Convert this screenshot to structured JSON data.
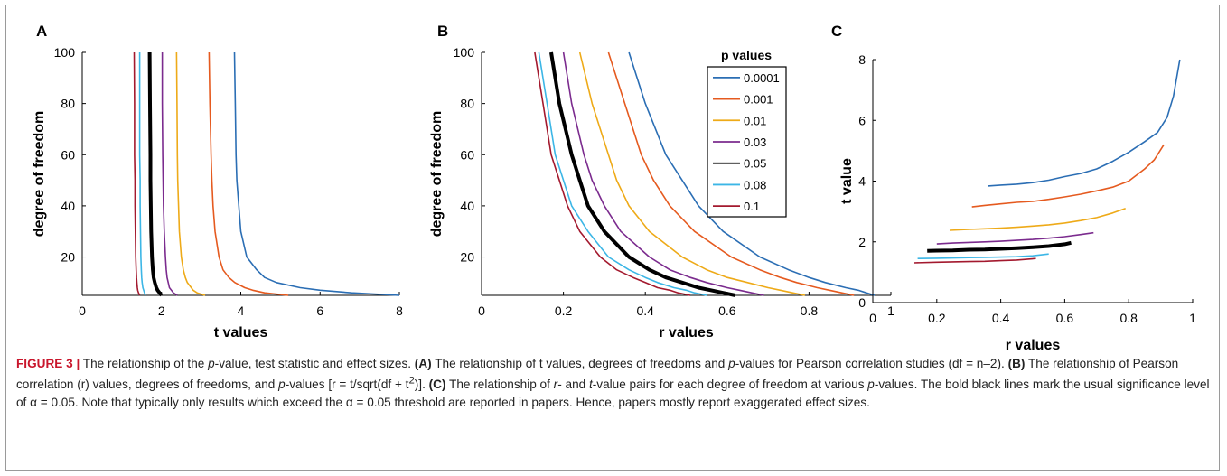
{
  "caption": {
    "figure_label": "FIGURE 3 |",
    "segments": [
      {
        "t": " The relationship of the ",
        "s": "n"
      },
      {
        "t": "p",
        "s": "i"
      },
      {
        "t": "-value, test statistic and effect sizes. ",
        "s": "n"
      },
      {
        "t": "(A)",
        "s": "b"
      },
      {
        "t": " The relationship of t values, degrees of freedoms and ",
        "s": "n"
      },
      {
        "t": "p",
        "s": "i"
      },
      {
        "t": "-values for Pearson correlation studies (df = n–2). ",
        "s": "n"
      },
      {
        "t": "(B)",
        "s": "b"
      },
      {
        "t": " The relationship of Pearson correlation (r) values, degrees of freedoms, and ",
        "s": "n"
      },
      {
        "t": "p",
        "s": "i"
      },
      {
        "t": "-values [r = t/sqrt(df + t",
        "s": "n"
      },
      {
        "t": "2",
        "s": "sup"
      },
      {
        "t": ")]. ",
        "s": "n"
      },
      {
        "t": "(C)",
        "s": "b"
      },
      {
        "t": " The relationship of ",
        "s": "n"
      },
      {
        "t": "r",
        "s": "i"
      },
      {
        "t": "- and ",
        "s": "n"
      },
      {
        "t": "t",
        "s": "i"
      },
      {
        "t": "-value pairs for each degree of freedom at various ",
        "s": "n"
      },
      {
        "t": "p",
        "s": "i"
      },
      {
        "t": "-values. The bold black lines mark the usual significance level of α = 0.05. Note that typically only results which exceed the α = 0.05 threshold are reported in papers. Hence, papers mostly report exaggerated effect sizes.",
        "s": "n"
      }
    ]
  },
  "chart_data": [
    {
      "panel": "A",
      "type": "line",
      "xlabel": "t values",
      "ylabel": "degree of freedom",
      "xlim": [
        0,
        8
      ],
      "ylim": [
        5,
        100
      ],
      "xticks": [
        "0",
        "2",
        "4",
        "6",
        "8"
      ],
      "yticks": [
        "20",
        "40",
        "60",
        "80",
        "100"
      ],
      "x_tick_values": [
        0,
        2,
        4,
        6,
        8
      ],
      "y_tick_values": [
        20,
        40,
        60,
        80,
        100
      ],
      "df": [
        5,
        6,
        7,
        8,
        10,
        12,
        15,
        20,
        30,
        40,
        50,
        60,
        80,
        100
      ],
      "series": [
        {
          "name": "0.0001",
          "color": "#2b6eb4",
          "values": [
            8.0,
            6.8,
            6.0,
            5.5,
            4.9,
            4.6,
            4.4,
            4.15,
            4.0,
            3.95,
            3.9,
            3.88,
            3.86,
            3.84
          ]
        },
        {
          "name": "0.001",
          "color": "#e55a1f",
          "values": [
            5.2,
            4.6,
            4.3,
            4.1,
            3.85,
            3.7,
            3.55,
            3.45,
            3.35,
            3.3,
            3.27,
            3.25,
            3.22,
            3.2
          ]
        },
        {
          "name": "0.01",
          "color": "#eeaa18",
          "values": [
            3.1,
            2.9,
            2.8,
            2.75,
            2.65,
            2.6,
            2.55,
            2.5,
            2.45,
            2.43,
            2.41,
            2.4,
            2.39,
            2.38
          ]
        },
        {
          "name": "0.03",
          "color": "#7b2b8e",
          "values": [
            2.4,
            2.3,
            2.25,
            2.2,
            2.17,
            2.14,
            2.12,
            2.1,
            2.07,
            2.05,
            2.04,
            2.03,
            2.02,
            2.02
          ]
        },
        {
          "name": "0.05",
          "color": "#000000",
          "bold": true,
          "values": [
            2.0,
            1.95,
            1.9,
            1.87,
            1.83,
            1.8,
            1.78,
            1.76,
            1.74,
            1.73,
            1.72,
            1.72,
            1.71,
            1.7
          ]
        },
        {
          "name": "0.08",
          "color": "#3cb6e6",
          "values": [
            1.6,
            1.57,
            1.55,
            1.53,
            1.51,
            1.5,
            1.49,
            1.48,
            1.47,
            1.46,
            1.46,
            1.45,
            1.45,
            1.45
          ]
        },
        {
          "name": "0.1",
          "color": "#a3192e",
          "values": [
            1.45,
            1.42,
            1.4,
            1.39,
            1.38,
            1.37,
            1.36,
            1.35,
            1.34,
            1.33,
            1.33,
            1.32,
            1.32,
            1.31
          ]
        }
      ]
    },
    {
      "panel": "B",
      "type": "line",
      "xlabel": "r values",
      "ylabel": "degree of freedom",
      "xlim": [
        0,
        1
      ],
      "ylim": [
        5,
        100
      ],
      "xticks": [
        "0",
        "0.2",
        "0.4",
        "0.6",
        "0.8",
        "1"
      ],
      "yticks": [
        "20",
        "40",
        "60",
        "80",
        "100"
      ],
      "x_tick_values": [
        0,
        0.2,
        0.4,
        0.6,
        0.8,
        1
      ],
      "y_tick_values": [
        20,
        40,
        60,
        80,
        100
      ],
      "legend": {
        "title": "p values",
        "placement": "top-right"
      },
      "df": [
        5,
        6,
        7,
        8,
        10,
        12,
        15,
        20,
        30,
        40,
        50,
        60,
        80,
        100
      ],
      "series": [
        {
          "name": "0.0001",
          "color": "#2b6eb4",
          "values": [
            0.96,
            0.94,
            0.92,
            0.89,
            0.84,
            0.8,
            0.75,
            0.68,
            0.59,
            0.53,
            0.49,
            0.45,
            0.4,
            0.36
          ]
        },
        {
          "name": "0.001",
          "color": "#e55a1f",
          "values": [
            0.91,
            0.88,
            0.85,
            0.82,
            0.77,
            0.73,
            0.68,
            0.61,
            0.52,
            0.46,
            0.42,
            0.39,
            0.35,
            0.31
          ]
        },
        {
          "name": "0.01",
          "color": "#eeaa18",
          "values": [
            0.79,
            0.76,
            0.73,
            0.7,
            0.65,
            0.6,
            0.55,
            0.49,
            0.41,
            0.36,
            0.33,
            0.31,
            0.27,
            0.24
          ]
        },
        {
          "name": "0.03",
          "color": "#7b2b8e",
          "values": [
            0.69,
            0.66,
            0.63,
            0.6,
            0.55,
            0.51,
            0.46,
            0.41,
            0.34,
            0.3,
            0.27,
            0.25,
            0.22,
            0.2
          ]
        },
        {
          "name": "0.05",
          "color": "#000000",
          "bold": true,
          "values": [
            0.62,
            0.59,
            0.56,
            0.53,
            0.49,
            0.45,
            0.41,
            0.36,
            0.3,
            0.26,
            0.24,
            0.22,
            0.19,
            0.17
          ]
        },
        {
          "name": "0.08",
          "color": "#3cb6e6",
          "values": [
            0.55,
            0.52,
            0.5,
            0.47,
            0.43,
            0.4,
            0.36,
            0.31,
            0.26,
            0.22,
            0.2,
            0.18,
            0.16,
            0.14
          ]
        },
        {
          "name": "0.1",
          "color": "#a3192e",
          "values": [
            0.51,
            0.48,
            0.46,
            0.43,
            0.4,
            0.37,
            0.33,
            0.29,
            0.24,
            0.21,
            0.19,
            0.17,
            0.15,
            0.13
          ]
        }
      ]
    },
    {
      "panel": "C",
      "type": "line",
      "xlabel": "r values",
      "ylabel": "t value",
      "xlim": [
        0,
        1
      ],
      "ylim": [
        0,
        8
      ],
      "xticks": [
        "0",
        "0.2",
        "0.4",
        "0.6",
        "0.8",
        "1"
      ],
      "yticks": [
        "0",
        "2",
        "4",
        "6",
        "8"
      ],
      "x_tick_values": [
        0,
        0.2,
        0.4,
        0.6,
        0.8,
        1
      ],
      "y_tick_values": [
        0,
        2,
        4,
        6,
        8
      ],
      "series": [
        {
          "name": "0.0001",
          "color": "#2b6eb4",
          "x": [
            0.36,
            0.4,
            0.45,
            0.5,
            0.55,
            0.6,
            0.65,
            0.7,
            0.75,
            0.8,
            0.85,
            0.89,
            0.92,
            0.94,
            0.96
          ],
          "y": [
            3.84,
            3.87,
            3.9,
            3.95,
            4.03,
            4.15,
            4.25,
            4.4,
            4.65,
            4.95,
            5.3,
            5.6,
            6.1,
            6.8,
            8.0
          ]
        },
        {
          "name": "0.001",
          "color": "#e55a1f",
          "x": [
            0.31,
            0.35,
            0.4,
            0.45,
            0.5,
            0.55,
            0.6,
            0.65,
            0.7,
            0.75,
            0.8,
            0.85,
            0.88,
            0.91
          ],
          "y": [
            3.15,
            3.2,
            3.25,
            3.3,
            3.33,
            3.4,
            3.48,
            3.57,
            3.68,
            3.8,
            4.0,
            4.4,
            4.7,
            5.2
          ]
        },
        {
          "name": "0.01",
          "color": "#eeaa18",
          "x": [
            0.24,
            0.3,
            0.35,
            0.4,
            0.45,
            0.5,
            0.55,
            0.6,
            0.65,
            0.7,
            0.75,
            0.79
          ],
          "y": [
            2.38,
            2.41,
            2.43,
            2.45,
            2.48,
            2.52,
            2.56,
            2.62,
            2.7,
            2.8,
            2.95,
            3.1
          ]
        },
        {
          "name": "0.03",
          "color": "#7b2b8e",
          "x": [
            0.2,
            0.25,
            0.3,
            0.35,
            0.4,
            0.45,
            0.5,
            0.55,
            0.6,
            0.65,
            0.69
          ],
          "y": [
            1.93,
            1.96,
            1.98,
            2.0,
            2.02,
            2.05,
            2.08,
            2.12,
            2.17,
            2.24,
            2.3
          ]
        },
        {
          "name": "0.05",
          "color": "#000000",
          "bold": true,
          "x": [
            0.17,
            0.2,
            0.25,
            0.3,
            0.35,
            0.4,
            0.45,
            0.5,
            0.55,
            0.6,
            0.62
          ],
          "y": [
            1.7,
            1.71,
            1.72,
            1.74,
            1.75,
            1.77,
            1.79,
            1.82,
            1.86,
            1.92,
            1.97
          ]
        },
        {
          "name": "0.08",
          "color": "#3cb6e6",
          "x": [
            0.14,
            0.2,
            0.25,
            0.3,
            0.35,
            0.4,
            0.45,
            0.5,
            0.55
          ],
          "y": [
            1.45,
            1.46,
            1.47,
            1.48,
            1.49,
            1.5,
            1.51,
            1.54,
            1.6
          ]
        },
        {
          "name": "0.1",
          "color": "#a3192e",
          "x": [
            0.13,
            0.2,
            0.25,
            0.3,
            0.35,
            0.4,
            0.45,
            0.51
          ],
          "y": [
            1.31,
            1.33,
            1.34,
            1.35,
            1.36,
            1.38,
            1.4,
            1.45
          ]
        }
      ]
    }
  ]
}
